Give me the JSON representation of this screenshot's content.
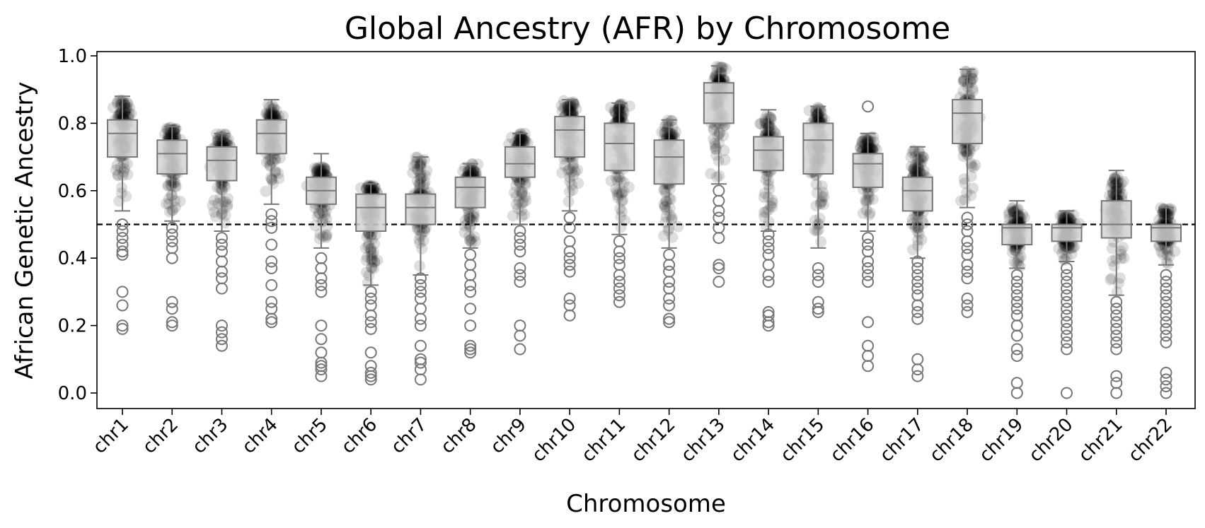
{
  "chart_data": {
    "type": "box",
    "title": "Global Ancestry (AFR) by Chromosome",
    "xlabel": "Chromosome",
    "ylabel": "African Genetic Ancestry",
    "ylim": [
      -0.05,
      1.02
    ],
    "yticks": [
      0.0,
      0.2,
      0.4,
      0.6,
      0.8,
      1.0
    ],
    "ytick_labels": [
      "0.0",
      "0.2",
      "0.4",
      "0.6",
      "0.8",
      "1.0"
    ],
    "reference_line": {
      "y": 0.5,
      "style": "dashed"
    },
    "grid": false,
    "legend": "none",
    "colors": {
      "box_fill": "#d3d3d3",
      "box_edge": "#777777",
      "points": "#000000",
      "reference_line": "#000000"
    },
    "categories": [
      "chr1",
      "chr2",
      "chr3",
      "chr4",
      "chr5",
      "chr6",
      "chr7",
      "chr8",
      "chr9",
      "chr10",
      "chr11",
      "chr12",
      "chr13",
      "chr14",
      "chr15",
      "chr16",
      "chr17",
      "chr18",
      "chr19",
      "chr20",
      "chr21",
      "chr22"
    ],
    "boxes": [
      {
        "q1": 0.7,
        "median": 0.77,
        "q3": 0.81,
        "whislo": 0.54,
        "whishi": 0.88,
        "pmin": 0.55,
        "pmax": 0.87,
        "fliers": [
          0.19,
          0.2,
          0.26,
          0.3,
          0.41,
          0.42,
          0.44,
          0.46,
          0.48,
          0.5
        ]
      },
      {
        "q1": 0.65,
        "median": 0.71,
        "q3": 0.75,
        "whislo": 0.51,
        "whishi": 0.79,
        "pmin": 0.5,
        "pmax": 0.79,
        "fliers": [
          0.2,
          0.21,
          0.25,
          0.27,
          0.4,
          0.43,
          0.45,
          0.47,
          0.49
        ]
      },
      {
        "q1": 0.63,
        "median": 0.69,
        "q3": 0.73,
        "whislo": 0.48,
        "whishi": 0.77,
        "pmin": 0.47,
        "pmax": 0.77,
        "fliers": [
          0.14,
          0.16,
          0.18,
          0.2,
          0.31,
          0.34,
          0.36,
          0.39,
          0.42,
          0.44,
          0.46
        ]
      },
      {
        "q1": 0.71,
        "median": 0.77,
        "q3": 0.81,
        "whislo": 0.56,
        "whishi": 0.87,
        "pmin": 0.56,
        "pmax": 0.86,
        "fliers": [
          0.21,
          0.22,
          0.25,
          0.27,
          0.32,
          0.37,
          0.39,
          0.44,
          0.49,
          0.51,
          0.53
        ]
      },
      {
        "q1": 0.56,
        "median": 0.6,
        "q3": 0.64,
        "whislo": 0.43,
        "whishi": 0.71,
        "pmin": 0.43,
        "pmax": 0.67,
        "fliers": [
          0.05,
          0.07,
          0.08,
          0.09,
          0.12,
          0.16,
          0.2,
          0.3,
          0.32,
          0.34,
          0.37,
          0.4
        ]
      },
      {
        "q1": 0.48,
        "median": 0.55,
        "q3": 0.59,
        "whislo": 0.32,
        "whishi": 0.62,
        "pmin": 0.32,
        "pmax": 0.62,
        "fliers": [
          0.04,
          0.05,
          0.06,
          0.08,
          0.12,
          0.19,
          0.21,
          0.23,
          0.26,
          0.28,
          0.3
        ]
      },
      {
        "q1": 0.5,
        "median": 0.55,
        "q3": 0.59,
        "whislo": 0.35,
        "whishi": 0.7,
        "pmin": 0.35,
        "pmax": 0.7,
        "fliers": [
          0.04,
          0.07,
          0.09,
          0.1,
          0.14,
          0.2,
          0.22,
          0.25,
          0.28,
          0.3,
          0.32,
          0.34
        ]
      },
      {
        "q1": 0.55,
        "median": 0.61,
        "q3": 0.64,
        "whislo": 0.43,
        "whishi": 0.68,
        "pmin": 0.43,
        "pmax": 0.68,
        "fliers": [
          0.12,
          0.13,
          0.14,
          0.2,
          0.25,
          0.3,
          0.32,
          0.35,
          0.38,
          0.41
        ]
      },
      {
        "q1": 0.64,
        "median": 0.68,
        "q3": 0.73,
        "whislo": 0.5,
        "whishi": 0.77,
        "pmin": 0.5,
        "pmax": 0.77,
        "fliers": [
          0.13,
          0.17,
          0.2,
          0.33,
          0.35,
          0.37,
          0.42,
          0.44,
          0.46,
          0.48
        ]
      },
      {
        "q1": 0.7,
        "median": 0.78,
        "q3": 0.82,
        "whislo": 0.54,
        "whishi": 0.87,
        "pmin": 0.54,
        "pmax": 0.87,
        "fliers": [
          0.23,
          0.26,
          0.28,
          0.36,
          0.38,
          0.4,
          0.42,
          0.45,
          0.49,
          0.52
        ]
      },
      {
        "q1": 0.66,
        "median": 0.74,
        "q3": 0.8,
        "whislo": 0.47,
        "whishi": 0.86,
        "pmin": 0.47,
        "pmax": 0.86,
        "fliers": [
          0.27,
          0.29,
          0.31,
          0.33,
          0.35,
          0.38,
          0.4,
          0.42,
          0.45
        ]
      },
      {
        "q1": 0.62,
        "median": 0.7,
        "q3": 0.75,
        "whislo": 0.43,
        "whishi": 0.81,
        "pmin": 0.43,
        "pmax": 0.81,
        "fliers": [
          0.21,
          0.22,
          0.26,
          0.28,
          0.31,
          0.33,
          0.36,
          0.38,
          0.41
        ]
      },
      {
        "q1": 0.8,
        "median": 0.89,
        "q3": 0.92,
        "whislo": 0.62,
        "whishi": 0.97,
        "pmin": 0.62,
        "pmax": 0.97,
        "fliers": [
          0.33,
          0.37,
          0.38,
          0.46,
          0.49,
          0.52,
          0.54,
          0.57,
          0.6
        ]
      },
      {
        "q1": 0.66,
        "median": 0.72,
        "q3": 0.76,
        "whislo": 0.48,
        "whishi": 0.84,
        "pmin": 0.48,
        "pmax": 0.83,
        "fliers": [
          0.2,
          0.21,
          0.23,
          0.24,
          0.33,
          0.35,
          0.38,
          0.41,
          0.43,
          0.45,
          0.47
        ]
      },
      {
        "q1": 0.65,
        "median": 0.75,
        "q3": 0.8,
        "whislo": 0.43,
        "whishi": 0.85,
        "pmin": 0.43,
        "pmax": 0.85,
        "fliers": [
          0.24,
          0.25,
          0.27,
          0.33,
          0.35,
          0.37
        ]
      },
      {
        "q1": 0.61,
        "median": 0.68,
        "q3": 0.71,
        "whislo": 0.48,
        "whishi": 0.77,
        "pmin": 0.48,
        "pmax": 0.76,
        "fliers": [
          0.08,
          0.11,
          0.14,
          0.21,
          0.33,
          0.35,
          0.37,
          0.39,
          0.42,
          0.44,
          0.46,
          0.85
        ]
      },
      {
        "q1": 0.54,
        "median": 0.6,
        "q3": 0.64,
        "whislo": 0.4,
        "whishi": 0.73,
        "pmin": 0.4,
        "pmax": 0.72,
        "fliers": [
          0.05,
          0.07,
          0.1,
          0.22,
          0.24,
          0.26,
          0.29,
          0.31,
          0.33,
          0.35,
          0.37,
          0.39
        ]
      },
      {
        "q1": 0.74,
        "median": 0.83,
        "q3": 0.87,
        "whislo": 0.55,
        "whishi": 0.96,
        "pmin": 0.55,
        "pmax": 0.96,
        "fliers": [
          0.24,
          0.26,
          0.28,
          0.34,
          0.36,
          0.38,
          0.41,
          0.43,
          0.45,
          0.48,
          0.5,
          0.52
        ]
      },
      {
        "q1": 0.44,
        "median": 0.49,
        "q3": 0.5,
        "whislo": 0.37,
        "whishi": 0.57,
        "pmin": 0.37,
        "pmax": 0.55,
        "fliers": [
          0.0,
          0.03,
          0.11,
          0.13,
          0.17,
          0.2,
          0.23,
          0.25,
          0.27,
          0.29,
          0.31,
          0.33,
          0.35
        ]
      },
      {
        "q1": 0.45,
        "median": 0.49,
        "q3": 0.5,
        "whislo": 0.39,
        "whishi": 0.54,
        "pmin": 0.39,
        "pmax": 0.53,
        "fliers": [
          0.0,
          0.13,
          0.15,
          0.17,
          0.19,
          0.21,
          0.23,
          0.25,
          0.27,
          0.29,
          0.31,
          0.33,
          0.35,
          0.37
        ]
      },
      {
        "q1": 0.46,
        "median": 0.5,
        "q3": 0.57,
        "whislo": 0.29,
        "whishi": 0.66,
        "pmin": 0.29,
        "pmax": 0.65,
        "fliers": [
          0.0,
          0.03,
          0.05,
          0.13,
          0.15,
          0.17,
          0.19,
          0.21,
          0.23,
          0.25,
          0.27
        ]
      },
      {
        "q1": 0.45,
        "median": 0.49,
        "q3": 0.5,
        "whislo": 0.38,
        "whishi": 0.55,
        "pmin": 0.38,
        "pmax": 0.55,
        "fliers": [
          0.0,
          0.02,
          0.04,
          0.06,
          0.15,
          0.17,
          0.19,
          0.21,
          0.23,
          0.25,
          0.27,
          0.29,
          0.31,
          0.33,
          0.35
        ]
      }
    ]
  }
}
